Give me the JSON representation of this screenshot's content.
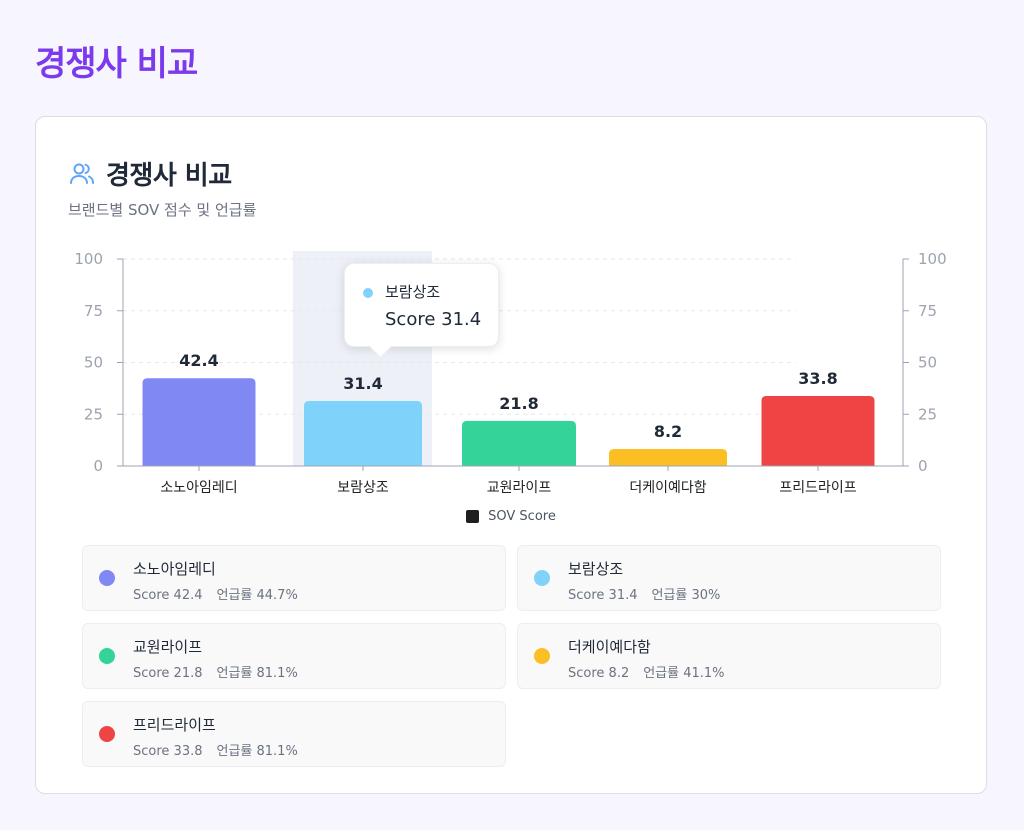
{
  "page": {
    "title": "경쟁사 비교"
  },
  "card": {
    "title": "경쟁사 비교",
    "subtitle": "브랜드별 SOV 점수 및 언급률",
    "icon": "users-icon"
  },
  "chart_data": {
    "type": "bar",
    "categories": [
      "소노아임레디",
      "보람상조",
      "교원라이프",
      "더케이예다함",
      "프리드라이프"
    ],
    "values": [
      42.4,
      31.4,
      21.8,
      8.2,
      33.8
    ],
    "value_labels": [
      "42.4",
      "31.4",
      "21.8",
      "8.2",
      "33.8"
    ],
    "colors": [
      "#8088f4",
      "#7fd3fb",
      "#34d399",
      "#fbbf24",
      "#ef4444"
    ],
    "ylim": [
      0,
      100
    ],
    "yticks": [
      "0",
      "25",
      "50",
      "75",
      "100"
    ],
    "ytick_values": [
      0,
      25,
      50,
      75,
      100
    ],
    "grid": true,
    "dual_axis": true,
    "highlighted_index": 1,
    "legend": {
      "position": "bottom",
      "label": "SOV Score"
    }
  },
  "tooltip": {
    "name": "보람상조",
    "score": "Score 31.4",
    "color": "#7fd3fb"
  },
  "brands": [
    {
      "name": "소노아임레디",
      "score": "Score 42.4",
      "mention": "언급률 44.7%",
      "color": "#8088f4"
    },
    {
      "name": "보람상조",
      "score": "Score 31.4",
      "mention": "언급률 30%",
      "color": "#7fd3fb"
    },
    {
      "name": "교원라이프",
      "score": "Score 21.8",
      "mention": "언급률 81.1%",
      "color": "#34d399"
    },
    {
      "name": "더케이예다함",
      "score": "Score 8.2",
      "mention": "언급률 41.1%",
      "color": "#fbbf24"
    },
    {
      "name": "프리드라이프",
      "score": "Score 33.8",
      "mention": "언급률 81.1%",
      "color": "#ef4444"
    }
  ]
}
